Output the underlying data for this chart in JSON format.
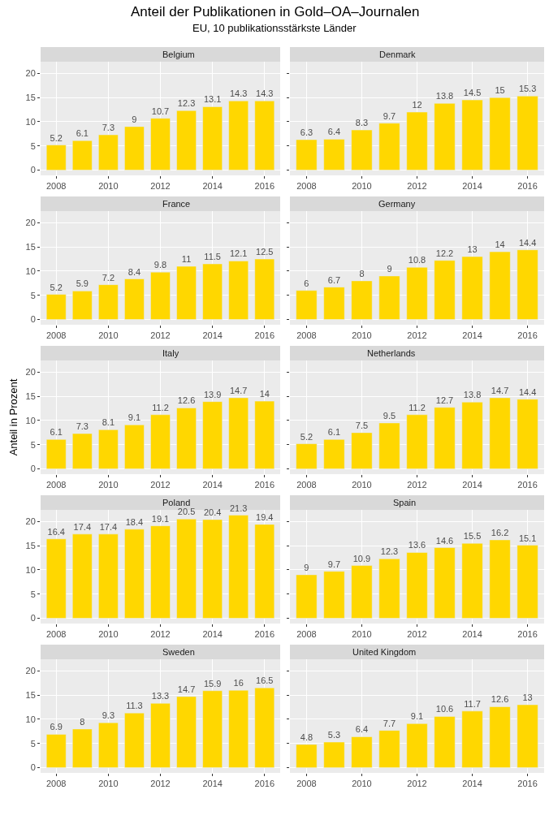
{
  "chart_data": [
    {
      "type": "other",
      "title": "Anteil der Publikationen in Gold–OA–Journalen",
      "subtitle": "EU, 10 publikationsstärkste Länder"
    },
    {
      "type": "bar",
      "title": "Belgium",
      "x": [
        2008,
        2009,
        2010,
        2011,
        2012,
        2013,
        2014,
        2015,
        2016
      ],
      "values": [
        5.2,
        6.1,
        7.3,
        9,
        10.7,
        12.3,
        13.1,
        14.3,
        14.3
      ],
      "color": "#ffd700",
      "xlim": [
        2007.4,
        2016.6
      ],
      "xticks": [
        2008,
        2010,
        2012,
        2014,
        2016
      ],
      "ylim": [
        -1.07,
        22.4
      ],
      "yticks": [
        0,
        5,
        10,
        15,
        20
      ],
      "grid": true,
      "data_labels": true
    },
    {
      "type": "bar",
      "title": "Denmark",
      "x": [
        2008,
        2009,
        2010,
        2011,
        2012,
        2013,
        2014,
        2015,
        2016
      ],
      "values": [
        6.3,
        6.4,
        8.3,
        9.7,
        12,
        13.8,
        14.5,
        15,
        15.3
      ],
      "color": "#ffd700",
      "xlim": [
        2007.4,
        2016.6
      ],
      "xticks": [
        2008,
        2010,
        2012,
        2014,
        2016
      ],
      "ylim": [
        -1.07,
        22.4
      ],
      "yticks": [
        0,
        5,
        10,
        15,
        20
      ],
      "grid": true,
      "data_labels": true,
      "tick_labels": "x"
    },
    {
      "type": "bar",
      "title": "France",
      "x": [
        2008,
        2009,
        2010,
        2011,
        2012,
        2013,
        2014,
        2015,
        2016
      ],
      "values": [
        5.2,
        5.9,
        7.2,
        8.4,
        9.8,
        11,
        11.5,
        12.1,
        12.5
      ],
      "color": "#ffd700",
      "xlim": [
        2007.4,
        2016.6
      ],
      "xticks": [
        2008,
        2010,
        2012,
        2014,
        2016
      ],
      "ylim": [
        -1.07,
        22.4
      ],
      "yticks": [
        0,
        5,
        10,
        15,
        20
      ],
      "grid": true,
      "data_labels": true
    },
    {
      "type": "bar",
      "title": "Germany",
      "x": [
        2008,
        2009,
        2010,
        2011,
        2012,
        2013,
        2014,
        2015,
        2016
      ],
      "values": [
        6,
        6.7,
        8,
        9,
        10.8,
        12.2,
        13,
        14,
        14.4
      ],
      "color": "#ffd700",
      "xlim": [
        2007.4,
        2016.6
      ],
      "xticks": [
        2008,
        2010,
        2012,
        2014,
        2016
      ],
      "ylim": [
        -1.07,
        22.4
      ],
      "yticks": [
        0,
        5,
        10,
        15,
        20
      ],
      "grid": true,
      "data_labels": true,
      "tick_labels": "x"
    },
    {
      "type": "bar",
      "title": "Italy",
      "ylabel": "Anteil in Prozent",
      "x": [
        2008,
        2009,
        2010,
        2011,
        2012,
        2013,
        2014,
        2015,
        2016
      ],
      "values": [
        6.1,
        7.3,
        8.1,
        9.1,
        11.2,
        12.6,
        13.9,
        14.7,
        14
      ],
      "color": "#ffd700",
      "xlim": [
        2007.4,
        2016.6
      ],
      "xticks": [
        2008,
        2010,
        2012,
        2014,
        2016
      ],
      "ylim": [
        -1.07,
        22.4
      ],
      "yticks": [
        0,
        5,
        10,
        15,
        20
      ],
      "grid": true,
      "data_labels": true
    },
    {
      "type": "bar",
      "title": "Netherlands",
      "x": [
        2008,
        2009,
        2010,
        2011,
        2012,
        2013,
        2014,
        2015,
        2016
      ],
      "values": [
        5.2,
        6.1,
        7.5,
        9.5,
        11.2,
        12.7,
        13.8,
        14.7,
        14.4
      ],
      "color": "#ffd700",
      "xlim": [
        2007.4,
        2016.6
      ],
      "xticks": [
        2008,
        2010,
        2012,
        2014,
        2016
      ],
      "ylim": [
        -1.07,
        22.4
      ],
      "yticks": [
        0,
        5,
        10,
        15,
        20
      ],
      "grid": true,
      "data_labels": true,
      "tick_labels": "x"
    },
    {
      "type": "bar",
      "title": "Poland",
      "x": [
        2008,
        2009,
        2010,
        2011,
        2012,
        2013,
        2014,
        2015,
        2016
      ],
      "values": [
        16.4,
        17.4,
        17.4,
        18.4,
        19.1,
        20.5,
        20.4,
        21.3,
        19.4
      ],
      "color": "#ffd700",
      "xlim": [
        2007.4,
        2016.6
      ],
      "xticks": [
        2008,
        2010,
        2012,
        2014,
        2016
      ],
      "ylim": [
        -1.07,
        22.4
      ],
      "yticks": [
        0,
        5,
        10,
        15,
        20
      ],
      "grid": true,
      "data_labels": true
    },
    {
      "type": "bar",
      "title": "Spain",
      "x": [
        2008,
        2009,
        2010,
        2011,
        2012,
        2013,
        2014,
        2015,
        2016
      ],
      "values": [
        9,
        9.7,
        10.9,
        12.3,
        13.6,
        14.6,
        15.5,
        16.2,
        15.1
      ],
      "color": "#ffd700",
      "xlim": [
        2007.4,
        2016.6
      ],
      "xticks": [
        2008,
        2010,
        2012,
        2014,
        2016
      ],
      "ylim": [
        -1.07,
        22.4
      ],
      "yticks": [
        0,
        5,
        10,
        15,
        20
      ],
      "grid": true,
      "data_labels": true,
      "tick_labels": "x"
    },
    {
      "type": "bar",
      "title": "Sweden",
      "x": [
        2008,
        2009,
        2010,
        2011,
        2012,
        2013,
        2014,
        2015,
        2016
      ],
      "values": [
        6.9,
        8,
        9.3,
        11.3,
        13.3,
        14.7,
        15.9,
        16,
        16.5
      ],
      "color": "#ffd700",
      "xlim": [
        2007.4,
        2016.6
      ],
      "xticks": [
        2008,
        2010,
        2012,
        2014,
        2016
      ],
      "ylim": [
        -1.07,
        22.4
      ],
      "yticks": [
        0,
        5,
        10,
        15,
        20
      ],
      "grid": true,
      "data_labels": true
    },
    {
      "type": "bar",
      "title": "United Kingdom",
      "x": [
        2008,
        2009,
        2010,
        2011,
        2012,
        2013,
        2014,
        2015,
        2016
      ],
      "values": [
        4.8,
        5.3,
        6.4,
        7.7,
        9.1,
        10.6,
        11.7,
        12.6,
        13
      ],
      "color": "#ffd700",
      "xlim": [
        2007.4,
        2016.6
      ],
      "xticks": [
        2008,
        2010,
        2012,
        2014,
        2016
      ],
      "ylim": [
        -1.07,
        22.4
      ],
      "yticks": [
        0,
        5,
        10,
        15,
        20
      ],
      "grid": true,
      "data_labels": true,
      "tick_labels": "x"
    }
  ]
}
